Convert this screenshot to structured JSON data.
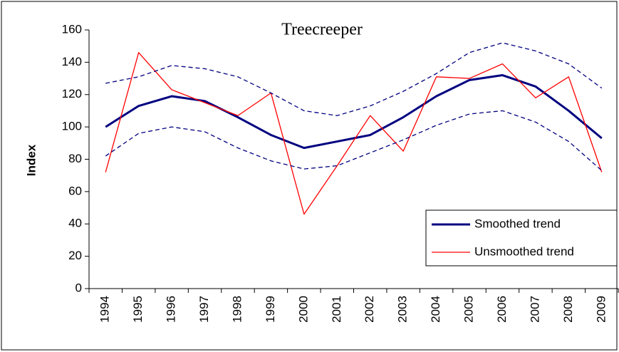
{
  "chart_data": {
    "type": "line",
    "title": "Treecreeper",
    "y_label": "Index",
    "categories": [
      "1994",
      "1995",
      "1996",
      "1997",
      "1998",
      "1999",
      "2000",
      "2001",
      "2002",
      "2003",
      "2004",
      "2005",
      "2006",
      "2007",
      "2008",
      "2009"
    ],
    "series": [
      {
        "name": "Smoothed trend",
        "color": "#000080",
        "values": [
          100,
          113,
          119,
          116,
          106,
          95,
          87,
          91,
          95,
          106,
          119,
          129,
          132,
          125,
          110,
          93
        ]
      },
      {
        "name": "Unsmoothed trend",
        "color": "#ff0000",
        "values": [
          72,
          146,
          123,
          115,
          107,
          121,
          46,
          76,
          107,
          85,
          131,
          130,
          139,
          118,
          131,
          72
        ]
      },
      {
        "color": "#000080",
        "dashed": true,
        "values": [
          127,
          131,
          138,
          136,
          131,
          121,
          110,
          107,
          113,
          122,
          133,
          146,
          152,
          147,
          139,
          124
        ]
      },
      {
        "color": "#000080",
        "dashed": true,
        "values": [
          82,
          96,
          100,
          97,
          87,
          79,
          74,
          76,
          84,
          92,
          101,
          108,
          110,
          103,
          91,
          73
        ]
      }
    ],
    "ylim": [
      0,
      160
    ],
    "yticks": [
      0,
      20,
      40,
      60,
      80,
      100,
      120,
      140,
      160
    ],
    "grid": false,
    "legend": "lower-right"
  }
}
